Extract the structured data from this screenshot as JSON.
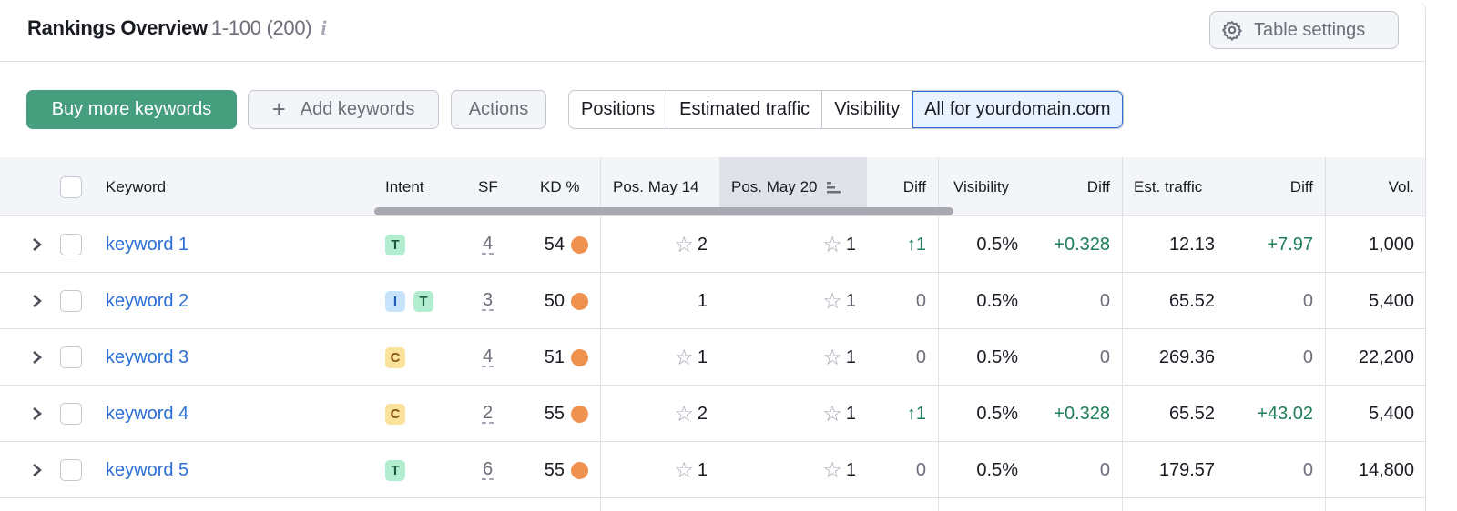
{
  "header": {
    "title": "Rankings Overview",
    "range": "1-100 (200)",
    "info_icon": "i",
    "settings_label": "Table settings"
  },
  "toolbar": {
    "buy_label": "Buy more keywords",
    "add_label": "Add keywords",
    "add_icon": "+",
    "actions_label": "Actions",
    "tabs": [
      "Positions",
      "Estimated traffic",
      "Visibility",
      "All for yourdomain.com"
    ],
    "active_tab": "All for yourdomain.com"
  },
  "colors": {
    "accent": "#469e7f",
    "link": "#2b6fd6",
    "positive": "#1f7f58",
    "kd_dot": "#f0924f"
  },
  "table": {
    "columns": {
      "keyword": "Keyword",
      "intent": "Intent",
      "sf": "SF",
      "kd": "KD %",
      "pos1": "Pos. May 14",
      "pos2": "Pos. May 20",
      "diff1": "Diff",
      "visibility": "Visibility",
      "diff2": "Diff",
      "traffic": "Est. traffic",
      "diff3": "Diff",
      "vol": "Vol."
    },
    "sorted_column": "Pos. May 20",
    "rows": [
      {
        "keyword": "keyword 1",
        "intent": [
          "T"
        ],
        "sf": "4",
        "kd": "54",
        "pos1": "2",
        "pos1_star": true,
        "pos2": "1",
        "diff": "↑1",
        "visibility": "0.5%",
        "vis_diff": "+0.328",
        "traffic": "12.13",
        "traffic_diff": "+7.97",
        "vol": "1,000"
      },
      {
        "keyword": "keyword 2",
        "intent": [
          "I",
          "T"
        ],
        "sf": "3",
        "kd": "50",
        "pos1": "1",
        "pos1_star": false,
        "pos2": "1",
        "diff": "0",
        "visibility": "0.5%",
        "vis_diff": "0",
        "traffic": "65.52",
        "traffic_diff": "0",
        "vol": "5,400"
      },
      {
        "keyword": "keyword 3",
        "intent": [
          "C"
        ],
        "sf": "4",
        "kd": "51",
        "pos1": "1",
        "pos1_star": true,
        "pos2": "1",
        "diff": "0",
        "visibility": "0.5%",
        "vis_diff": "0",
        "traffic": "269.36",
        "traffic_diff": "0",
        "vol": "22,200"
      },
      {
        "keyword": "keyword 4",
        "intent": [
          "C"
        ],
        "sf": "2",
        "kd": "55",
        "pos1": "2",
        "pos1_star": true,
        "pos2": "1",
        "diff": "↑1",
        "visibility": "0.5%",
        "vis_diff": "+0.328",
        "traffic": "65.52",
        "traffic_diff": "+43.02",
        "vol": "5,400"
      },
      {
        "keyword": "keyword 5",
        "intent": [
          "T"
        ],
        "sf": "6",
        "kd": "55",
        "pos1": "1",
        "pos1_star": true,
        "pos2": "1",
        "diff": "0",
        "visibility": "0.5%",
        "vis_diff": "0",
        "traffic": "179.57",
        "traffic_diff": "0",
        "vol": "14,800"
      }
    ]
  }
}
